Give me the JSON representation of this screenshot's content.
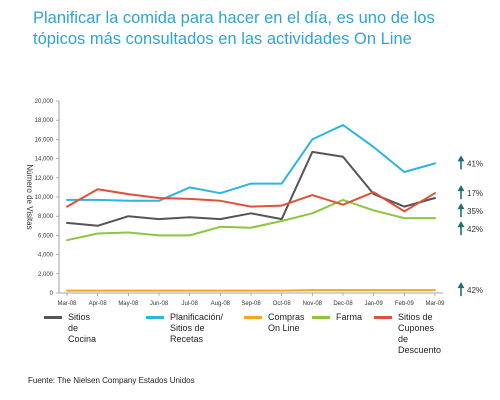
{
  "title_lines": [
    "Planificar la comida para hacer en el día, es uno de los",
    "tópicos más consultados en las actividades On Line"
  ],
  "source": "Fuente: The Nielsen Company Estados Unidos",
  "colors": {
    "title": "#2fa3d6",
    "arrow": "#1f6f78"
  },
  "chart_data": {
    "type": "line",
    "title": "",
    "xlabel": "",
    "ylabel": "Número de Visitas",
    "ylim": [
      0,
      20000
    ],
    "yticks": [
      "0",
      "2,000",
      "4,000",
      "6,000",
      "8,000",
      "10,000",
      "12,000",
      "14,000",
      "16,000",
      "18,000",
      "20,000"
    ],
    "grid": false,
    "legend_position": "bottom",
    "categories": [
      "Mar-08",
      "Apr-08",
      "May-08",
      "Jun-08",
      "Jul-08",
      "Aug-08",
      "Sep-08",
      "Oct-08",
      "Nov-08",
      "Dec-08",
      "Jan-09",
      "Feb-09",
      "Mar-09"
    ],
    "series": [
      {
        "name": "Sitios de\nCocina",
        "color": "#555555",
        "values": [
          7300,
          7000,
          8000,
          7700,
          7900,
          7700,
          8300,
          7700,
          14700,
          14200,
          10300,
          9000,
          9900
        ]
      },
      {
        "name": "Planificación/\nSitios de Recetas",
        "color": "#2bb5e0",
        "values": [
          9700,
          9700,
          9600,
          9600,
          11000,
          10400,
          11400,
          11400,
          16000,
          17500,
          15200,
          12600,
          13500
        ]
      },
      {
        "name": "Compras\nOn Line",
        "color": "#f5a623",
        "values": [
          250,
          250,
          250,
          250,
          250,
          250,
          250,
          250,
          300,
          300,
          300,
          300,
          300
        ]
      },
      {
        "name": "Farma",
        "color": "#8cc63f",
        "values": [
          5500,
          6200,
          6300,
          6000,
          6000,
          6900,
          6800,
          7500,
          8300,
          9700,
          8600,
          7800,
          7800
        ]
      },
      {
        "name": "Sitios de Cupones de\nDescuento",
        "color": "#e0503a",
        "values": [
          9000,
          10800,
          10300,
          9900,
          9800,
          9600,
          9000,
          9100,
          10200,
          9200,
          10500,
          8500,
          10400
        ]
      }
    ],
    "annotations": [
      {
        "label": "41%",
        "series": "Planificación/\nSitios de Recetas"
      },
      {
        "label": "17%",
        "series": "Sitios de Cupones de\nDescuento"
      },
      {
        "label": "35%",
        "series": "Sitios de\nCocina"
      },
      {
        "label": "42%",
        "series": "Farma"
      },
      {
        "label": "42%",
        "series": "Compras\nOn Line"
      }
    ]
  }
}
